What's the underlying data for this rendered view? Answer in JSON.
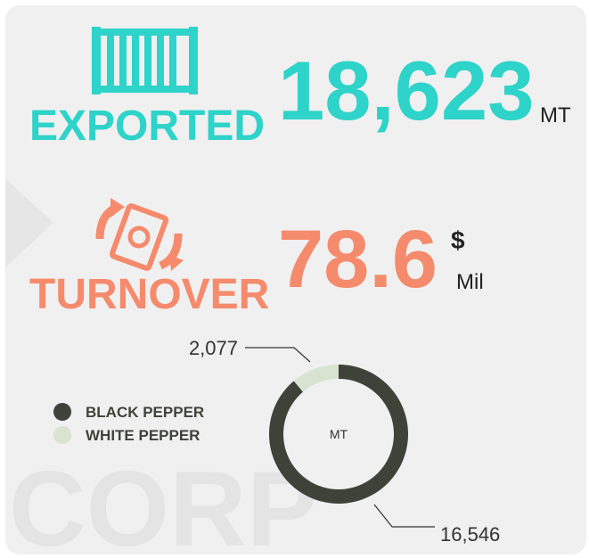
{
  "exported": {
    "label": "EXPORTED",
    "amount": "18,623",
    "unit": "MT"
  },
  "turnover": {
    "label": "TURNOVER",
    "amount": "78.6",
    "currency": "$",
    "unit": "Mil"
  },
  "watermark": "CORP",
  "chart_data": {
    "type": "pie",
    "donut": true,
    "categories": [
      "BLACK PEPPER",
      "WHITE PEPPER"
    ],
    "values": [
      16546,
      2077
    ],
    "value_labels": [
      "16,546",
      "2,077"
    ],
    "colors": [
      "#3f4239",
      "#d8e3d0"
    ],
    "center_label": "MT"
  }
}
